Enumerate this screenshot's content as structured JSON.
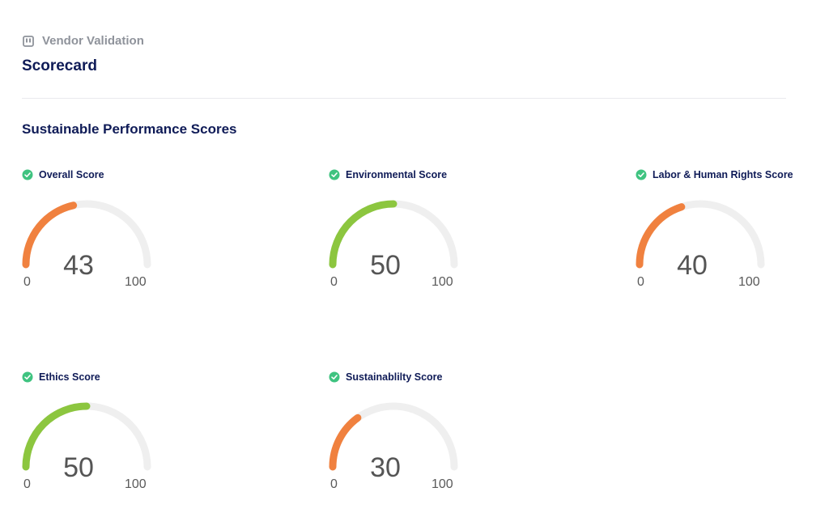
{
  "breadcrumb": {
    "icon": "clipboard-icon",
    "label": "Vendor Validation"
  },
  "page_title": "Scorecard",
  "section_title": "Sustainable Performance Scores",
  "colors": {
    "low": "#f0813f",
    "good": "#8cc63f",
    "track": "#efefef",
    "check": "#3fc380",
    "title": "#0f1b57"
  },
  "gauge_range": {
    "min": "0",
    "max": "100"
  },
  "scores": [
    {
      "label": "Overall Score",
      "value": 43,
      "status": "low"
    },
    {
      "label": "Environmental Score",
      "value": 50,
      "status": "good"
    },
    {
      "label": "Labor & Human Rights Score",
      "value": 40,
      "status": "low"
    },
    {
      "label": "Ethics Score",
      "value": 50,
      "status": "good"
    },
    {
      "label": "Sustainablilty Score",
      "value": 30,
      "status": "low"
    }
  ]
}
